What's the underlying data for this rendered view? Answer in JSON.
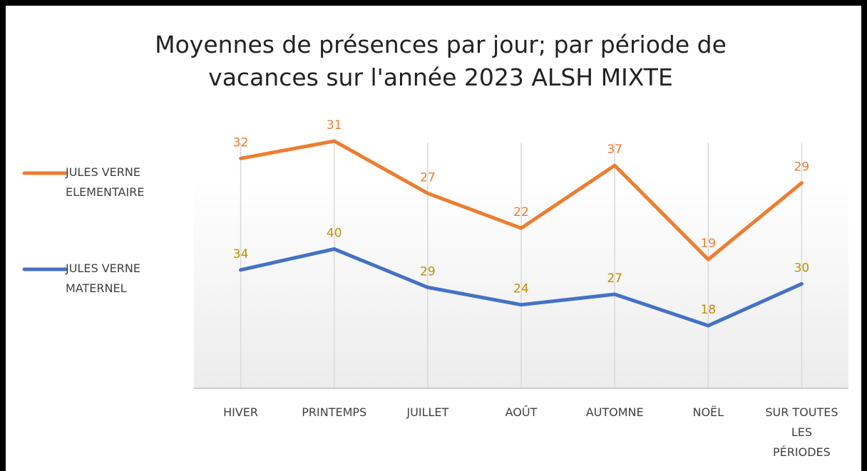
{
  "chart_data": {
    "type": "line",
    "stacked": true,
    "title": "Moyennes de présences par jour; par période de vacances sur l'année 2023 ALSH MIXTE",
    "categories": [
      "HIVER",
      "PRINTEMPS",
      "JUILLET",
      "AOÛT",
      "AUTOMNE",
      "NOËL",
      "SUR TOUTES LES PÉRIODES"
    ],
    "series": [
      {
        "name": "JULES VERNE ELEMENTAIRE",
        "color": "#ed7d31",
        "label_color": "#ed7d31",
        "values": [
          32,
          31,
          27,
          22,
          37,
          19,
          29
        ]
      },
      {
        "name": "JULES VERNE MATERNEL",
        "color": "#4472c4",
        "label_color": "#bf9000",
        "values": [
          34,
          40,
          29,
          24,
          27,
          18,
          30
        ]
      }
    ],
    "ylim": [
      0,
      80
    ],
    "legend": "left",
    "grid": "vertical"
  }
}
